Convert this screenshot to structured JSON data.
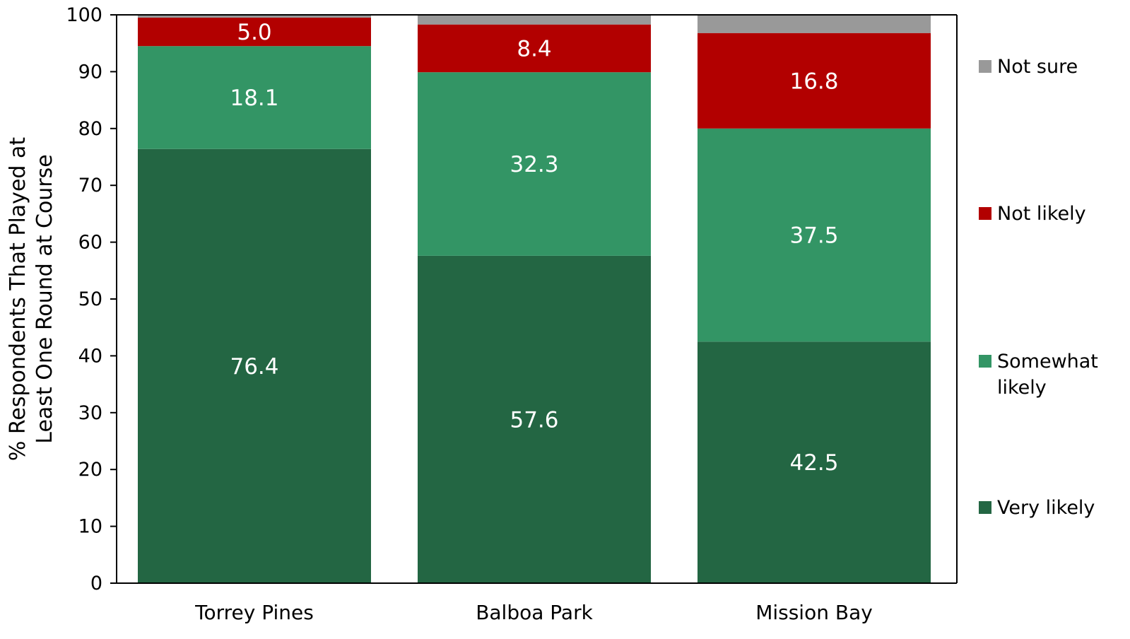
{
  "chart_data": {
    "type": "bar",
    "stacked": true,
    "title": "",
    "xlabel": "",
    "ylabel": "% Respondents That Played at Least One Round at Course",
    "ylabel_lines": [
      "% Respondents That Played at",
      "Least One Round at Course"
    ],
    "ylim": [
      0,
      100
    ],
    "yticks": [
      0,
      10,
      20,
      30,
      40,
      50,
      60,
      70,
      80,
      90,
      100
    ],
    "grid": false,
    "legend_position": "right",
    "categories": [
      "Torrey Pines",
      "Balboa Park",
      "Mission Bay"
    ],
    "series": [
      {
        "name": "Very likely",
        "legend_lines": [
          "Very likely"
        ],
        "color": "#236643",
        "values": [
          76.4,
          57.6,
          42.5
        ]
      },
      {
        "name": "Somewhat likely",
        "legend_lines": [
          "Somewhat",
          "likely"
        ],
        "color": "#339565",
        "values": [
          18.1,
          32.3,
          37.5
        ]
      },
      {
        "name": "Not likely",
        "legend_lines": [
          "Not likely"
        ],
        "color": "#b20000",
        "values": [
          5.0,
          8.4,
          16.8
        ]
      },
      {
        "name": "Not sure",
        "legend_lines": [
          "Not sure"
        ],
        "color": "#999999",
        "values": [
          0.6,
          1.7,
          3.3
        ]
      }
    ],
    "data_labels": [
      {
        "series": 0,
        "labels": [
          "76.4",
          "57.6",
          "42.5"
        ]
      },
      {
        "series": 1,
        "labels": [
          "18.1",
          "32.3",
          "37.5"
        ]
      },
      {
        "series": 2,
        "labels": [
          "5.0",
          "8.4",
          "16.8"
        ]
      }
    ]
  }
}
